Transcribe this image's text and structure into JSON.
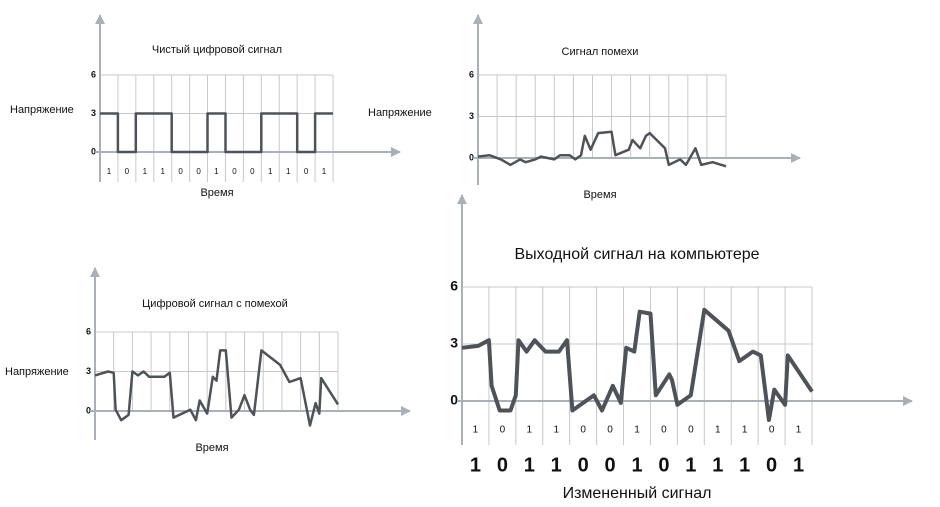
{
  "chart_data": [
    {
      "type": "line",
      "title": "Чистый цифровой сигнал",
      "y_label": "Напряжение",
      "x_label": "Время",
      "categories": [
        "1",
        "0",
        "1",
        "1",
        "0",
        "0",
        "1",
        "0",
        "0",
        "1",
        "1",
        "0",
        "1"
      ],
      "x": [
        0,
        1,
        1,
        2,
        2,
        4,
        4,
        6,
        6,
        7,
        7,
        9,
        9,
        11,
        11,
        12,
        12,
        13
      ],
      "values": [
        3,
        3,
        0,
        0,
        3,
        3,
        0,
        0,
        3,
        3,
        0,
        0,
        3,
        3,
        0,
        0,
        3,
        3
      ],
      "color": "#4d5359",
      "xlim": [
        0,
        13
      ],
      "ylim": [
        0,
        6
      ],
      "yticks": [
        0,
        3,
        6
      ],
      "grid": true
    },
    {
      "type": "line",
      "title": "Сигнал помехи",
      "y_label": "Напряжение",
      "x_label": "Время",
      "x": [
        0,
        0.6,
        1.2,
        1.7,
        2.2,
        2.5,
        3.0,
        3.3,
        4.0,
        4.3,
        4.8,
        5.1,
        5.4,
        5.6,
        5.9,
        6.3,
        7.0,
        7.2,
        7.9,
        8.1,
        8.5,
        8.8,
        9.0,
        9.8,
        10.0,
        10.6,
        10.9,
        11.4,
        11.7,
        12.3,
        13.0
      ],
      "values": [
        0.1,
        0.2,
        -0.1,
        -0.5,
        -0.1,
        -0.3,
        -0.1,
        0.1,
        -0.1,
        0.2,
        0.2,
        -0.1,
        0.2,
        1.6,
        0.6,
        1.8,
        1.9,
        0.2,
        0.6,
        1.3,
        0.7,
        1.6,
        1.8,
        0.7,
        -0.5,
        -0.1,
        -0.5,
        0.7,
        -0.5,
        -0.3,
        -0.6
      ],
      "color": "#4d5359",
      "xlim": [
        0,
        13
      ],
      "ylim": [
        0,
        6
      ],
      "yticks": [
        0,
        3,
        6
      ],
      "grid": true
    },
    {
      "type": "line",
      "title": "Цифровой сигнал с помехой",
      "y_label": "Напряжение",
      "x_label": "Время",
      "x": [
        0,
        0.7,
        1.0,
        1.1,
        1.4,
        1.8,
        2.0,
        2.3,
        2.6,
        2.9,
        3.7,
        4.0,
        4.2,
        5.1,
        5.4,
        5.6,
        6.0,
        6.3,
        6.5,
        6.7,
        7.0,
        7.3,
        7.7,
        8.0,
        8.3,
        8.5,
        8.9,
        9.9,
        10.4,
        11.0,
        11.5,
        11.8,
        12.0,
        12.1,
        13.0
      ],
      "values": [
        2.7,
        3.0,
        2.9,
        0.1,
        -0.7,
        -0.3,
        3.0,
        2.7,
        3.0,
        2.6,
        2.6,
        2.9,
        -0.5,
        0.1,
        -0.7,
        0.8,
        -0.2,
        2.6,
        2.3,
        4.6,
        4.6,
        -0.5,
        0.1,
        1.2,
        0.1,
        -0.3,
        4.6,
        3.5,
        2.2,
        2.5,
        -1.1,
        0.6,
        -0.2,
        2.5,
        0.5
      ],
      "color": "#4d5359",
      "xlim": [
        0,
        13
      ],
      "ylim": [
        0,
        6
      ],
      "yticks": [
        0,
        3,
        6
      ],
      "grid": true
    },
    {
      "type": "line",
      "title": "Выходной сигнал на компьютере",
      "x_label": "Измененный сигнал",
      "categories": [
        "1",
        "0",
        "1",
        "1",
        "0",
        "0",
        "1",
        "0",
        "0",
        "1",
        "1",
        "0",
        "1"
      ],
      "decoded": [
        "1",
        "0",
        "1",
        "1",
        "0",
        "0",
        "1",
        "0",
        "1",
        "1",
        "1",
        "0",
        "1"
      ],
      "highlight_index": 8,
      "highlight_color": "#c00000",
      "x": [
        0,
        0.6,
        1.0,
        1.1,
        1.4,
        1.8,
        2.0,
        2.1,
        2.4,
        2.7,
        3.1,
        3.6,
        3.9,
        4.1,
        4.9,
        5.2,
        5.6,
        5.9,
        6.1,
        6.4,
        6.6,
        7.0,
        7.2,
        7.7,
        7.8,
        8.0,
        8.5,
        9.0,
        9.9,
        10.3,
        10.8,
        11.1,
        11.4,
        11.6,
        12.0,
        12.1,
        13.0
      ],
      "values": [
        2.8,
        2.9,
        3.2,
        0.8,
        -0.5,
        -0.5,
        0.3,
        3.2,
        2.6,
        3.2,
        2.6,
        2.6,
        3.2,
        -0.5,
        0.3,
        -0.5,
        0.8,
        -0.1,
        2.8,
        2.6,
        4.7,
        4.6,
        0.3,
        1.4,
        1.1,
        -0.2,
        0.3,
        4.8,
        3.7,
        2.1,
        2.6,
        2.4,
        -1.0,
        0.6,
        -0.2,
        2.4,
        0.5
      ],
      "color": "#4d5359",
      "xlim": [
        0,
        13
      ],
      "ylim": [
        0,
        6
      ],
      "yticks": [
        0,
        3,
        6
      ],
      "grid": true
    }
  ]
}
